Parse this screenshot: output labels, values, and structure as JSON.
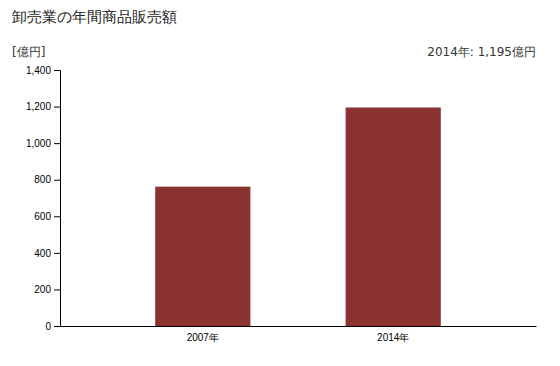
{
  "chart_data": {
    "type": "bar",
    "title": "卸売業の年間商品販売額",
    "ylabel": "[億円]",
    "annotations": [
      "2014年: 1,195億円"
    ],
    "categories": [
      "2007年",
      "2014年"
    ],
    "values": [
      762,
      1195
    ],
    "color": "#8B3330",
    "ylim": [
      0,
      1400
    ],
    "yticks": [
      0,
      200,
      400,
      600,
      800,
      {
        "value": 1000,
        "label": "1,000"
      },
      {
        "value": 1200,
        "label": "1,200"
      },
      {
        "value": 1400,
        "label": "1,400"
      }
    ],
    "grid": false
  }
}
